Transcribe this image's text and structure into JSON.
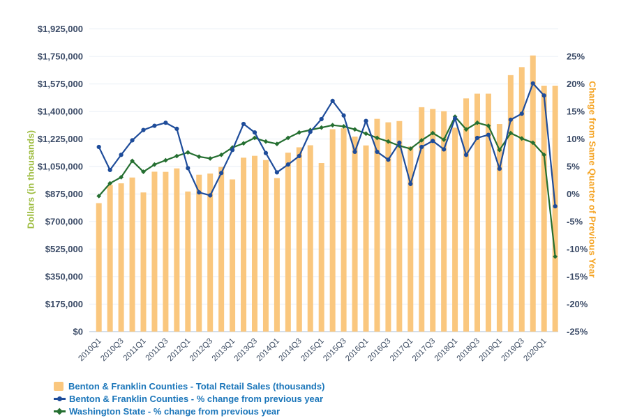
{
  "chart_data": {
    "type": "bar",
    "subtype": "combo-bar-line",
    "x": [
      "2010Q1",
      "2010Q2",
      "2010Q3",
      "2010Q4",
      "2011Q1",
      "2011Q2",
      "2011Q3",
      "2011Q4",
      "2012Q1",
      "2012Q2",
      "2012Q3",
      "2012Q4",
      "2013Q1",
      "2013Q2",
      "2013Q3",
      "2013Q4",
      "2014Q1",
      "2014Q2",
      "2014Q3",
      "2014Q4",
      "2015Q1",
      "2015Q2",
      "2015Q3",
      "2015Q4",
      "2016Q1",
      "2016Q2",
      "2016Q3",
      "2016Q4",
      "2017Q1",
      "2017Q2",
      "2017Q3",
      "2017Q4",
      "2018Q1",
      "2018Q2",
      "2018Q3",
      "2018Q4",
      "2019Q1",
      "2019Q2",
      "2019Q3",
      "2019Q4",
      "2020Q1",
      "2020Q2"
    ],
    "x_tick_step": 2,
    "series": [
      {
        "name": "Benton & Franklin Counties - Total Retail Sales (thousands)",
        "type": "bar",
        "axis": "left",
        "color": "#FAC77E",
        "values": [
          817000,
          933000,
          943000,
          980000,
          885000,
          1017000,
          1016000,
          1038000,
          891000,
          998000,
          1005000,
          1047000,
          968000,
          1106000,
          1118000,
          1091000,
          976000,
          1138000,
          1172000,
          1185000,
          1072000,
          1287000,
          1293000,
          1240000,
          1184000,
          1353000,
          1331000,
          1339000,
          1177000,
          1427000,
          1416000,
          1402000,
          1297000,
          1483000,
          1513000,
          1513000,
          1320000,
          1631000,
          1682000,
          1756000,
          1564000,
          1564000
        ]
      },
      {
        "name": "Benton & Franklin Counties - % change from previous year",
        "type": "line",
        "axis": "right",
        "marker": "circle",
        "color": "#1E4C9A",
        "values": [
          5.5,
          1.7,
          4.2,
          6.6,
          8.3,
          9.0,
          9.5,
          8.5,
          2.0,
          -2.0,
          -2.5,
          1.2,
          5.0,
          9.3,
          7.9,
          4.5,
          1.3,
          2.6,
          4.0,
          8.0,
          10.1,
          13.1,
          10.7,
          4.7,
          9.8,
          4.7,
          3.4,
          6.2,
          -0.6,
          5.5,
          6.5,
          5.1,
          10.2,
          4.2,
          7.0,
          7.5,
          1.9,
          10.0,
          11.0,
          16.0,
          14.0,
          -4.3
        ]
      },
      {
        "name": "Washington State - % change from previous year",
        "type": "line",
        "axis": "right",
        "marker": "diamond",
        "color": "#256F31",
        "values": [
          -2.6,
          -0.5,
          0.5,
          3.2,
          1.4,
          2.6,
          3.3,
          4.0,
          4.6,
          3.9,
          3.6,
          4.2,
          5.4,
          6.1,
          7.0,
          6.4,
          6.0,
          7.0,
          7.9,
          8.3,
          8.7,
          9.1,
          8.9,
          8.4,
          7.7,
          7.0,
          6.4,
          5.7,
          5.2,
          6.6,
          7.8,
          6.7,
          10.5,
          8.4,
          9.5,
          9.0,
          5.0,
          7.8,
          6.9,
          6.2,
          4.2,
          -12.6
        ]
      }
    ],
    "left_axis": {
      "title": "Dollars (in thousands)",
      "title_color": "#9CBB3C",
      "min": 0,
      "max": 1925000,
      "step": 175000,
      "tick_labels": [
        "$0",
        "$175,000",
        "$350,000",
        "$525,000",
        "$700,000",
        "$875,000",
        "$1,050,000",
        "$1,225,000",
        "$1,400,000",
        "$1,575,000",
        "$1,750,000",
        "$1,925,000"
      ]
    },
    "right_axis": {
      "title": "Change from Same Quarter of Previous Year",
      "title_color": "#F5A321",
      "min": -25,
      "max": 25,
      "step": 5,
      "tick_labels": [
        "-25%",
        "-20%",
        "-15%",
        "-10%",
        "-5%",
        "0%",
        "5%",
        "10%",
        "15%",
        "20%",
        "25%"
      ]
    },
    "grid": true,
    "legend_position": "bottom-left",
    "styles": {
      "tick_label_color": "#3A4A66",
      "x_tick_label_color": "#3E4D63",
      "gridline_color": "#E7EDF5",
      "baseline_color": "#C7D3E4",
      "legend_text_color": "#1B76BA",
      "background": "#FFFFFF"
    }
  }
}
